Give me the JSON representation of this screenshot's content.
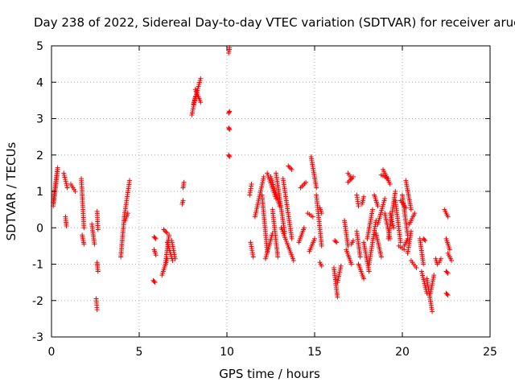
{
  "chart_data": {
    "type": "scatter",
    "title": "Day 238 of 2022, Sidereal Day-to-day VTEC variation (SDTVAR) for receiver aruc",
    "xlabel": "GPS time / hours",
    "ylabel": "SDTVAR / TECUs",
    "xlim": [
      0,
      25
    ],
    "ylim": [
      -3,
      5
    ],
    "xticks": [
      "0",
      "5",
      "10",
      "15",
      "20",
      "25"
    ],
    "yticks": [
      "-3",
      "-2",
      "-1",
      "0",
      "1",
      "2",
      "3",
      "4",
      "5"
    ],
    "grid": true,
    "marker": "plus",
    "series": [
      {
        "name": "SDTVAR",
        "color": "#ff0000",
        "segments": [
          [
            0.1,
            0.7,
            0.35,
            1.65
          ],
          [
            0.35,
            1.6,
            0.1,
            0.6
          ],
          [
            0.7,
            1.5,
            0.9,
            1.1
          ],
          [
            0.8,
            0.3,
            0.85,
            0.05
          ],
          [
            1.1,
            1.2,
            1.35,
            1.0
          ],
          [
            1.7,
            1.35,
            1.85,
            0.0
          ],
          [
            1.75,
            -0.2,
            1.85,
            -0.45
          ],
          [
            2.3,
            0.1,
            2.45,
            -0.45
          ],
          [
            2.6,
            0.45,
            2.65,
            -0.05
          ],
          [
            2.6,
            -0.95,
            2.65,
            -1.2
          ],
          [
            2.55,
            -1.95,
            2.6,
            -2.25
          ],
          [
            3.95,
            -0.8,
            4.15,
            0.3
          ],
          [
            4.15,
            0.3,
            4.45,
            1.3
          ],
          [
            4.2,
            0.2,
            4.35,
            0.4
          ],
          [
            5.85,
            -0.25,
            5.95,
            -0.3
          ],
          [
            5.85,
            -0.6,
            5.95,
            -0.75
          ],
          [
            5.8,
            -1.45,
            5.9,
            -1.5
          ],
          [
            6.3,
            -1.3,
            6.6,
            -0.85
          ],
          [
            6.5,
            -0.95,
            6.7,
            -0.2
          ],
          [
            6.6,
            -0.4,
            6.9,
            -0.9
          ],
          [
            6.85,
            -0.35,
            7.05,
            -0.85
          ],
          [
            6.4,
            -0.05,
            6.6,
            -0.15
          ],
          [
            7.5,
            1.1,
            7.55,
            1.25
          ],
          [
            7.45,
            0.65,
            7.5,
            0.75
          ],
          [
            8.0,
            3.1,
            8.2,
            3.6
          ],
          [
            8.1,
            3.4,
            8.5,
            4.1
          ],
          [
            8.2,
            3.8,
            8.5,
            3.45
          ],
          [
            10.1,
            4.8,
            10.15,
            4.95
          ],
          [
            10.1,
            3.15,
            10.15,
            3.2
          ],
          [
            10.1,
            2.75,
            10.15,
            2.7
          ],
          [
            10.1,
            2.0,
            10.15,
            1.95
          ],
          [
            11.3,
            0.9,
            11.4,
            1.2
          ],
          [
            11.35,
            -0.4,
            11.5,
            -0.8
          ],
          [
            11.6,
            0.3,
            12.1,
            1.4
          ],
          [
            12.0,
            0.9,
            12.3,
            -0.65
          ],
          [
            12.2,
            -0.85,
            12.6,
            -0.15
          ],
          [
            12.3,
            1.5,
            12.8,
            0.8
          ],
          [
            12.5,
            1.4,
            13.0,
            0.6
          ],
          [
            12.6,
            0.5,
            12.9,
            -0.8
          ],
          [
            12.8,
            1.5,
            13.3,
            -0.15
          ],
          [
            13.2,
            1.35,
            13.7,
            -0.3
          ],
          [
            13.1,
            0.0,
            13.8,
            -0.9
          ],
          [
            13.5,
            1.7,
            13.7,
            1.6
          ],
          [
            14.1,
            -0.4,
            14.4,
            0.0
          ],
          [
            14.2,
            1.1,
            14.5,
            1.25
          ],
          [
            14.6,
            0.4,
            14.9,
            0.3
          ],
          [
            14.7,
            -0.65,
            15.0,
            -0.3
          ],
          [
            14.8,
            1.95,
            15.1,
            1.1
          ],
          [
            15.1,
            0.9,
            15.4,
            -0.5
          ],
          [
            15.3,
            0.55,
            15.4,
            0.4
          ],
          [
            15.3,
            -0.95,
            15.4,
            -1.05
          ],
          [
            16.1,
            -1.1,
            16.3,
            -1.9
          ],
          [
            16.15,
            -0.35,
            16.25,
            -0.4
          ],
          [
            16.3,
            -1.5,
            16.5,
            -1.05
          ],
          [
            16.7,
            0.2,
            16.9,
            -0.5
          ],
          [
            16.8,
            -0.6,
            17.1,
            -1.0
          ],
          [
            16.9,
            1.5,
            17.1,
            1.35
          ],
          [
            16.9,
            1.25,
            17.2,
            1.4
          ],
          [
            17.1,
            -0.45,
            17.2,
            -0.35
          ],
          [
            17.4,
            0.9,
            17.5,
            0.6
          ],
          [
            17.4,
            -0.1,
            17.6,
            -0.8
          ],
          [
            17.5,
            -1.0,
            17.8,
            -1.4
          ],
          [
            17.7,
            0.65,
            17.8,
            0.85
          ],
          [
            17.8,
            -0.4,
            18.1,
            -1.2
          ],
          [
            18.0,
            -0.3,
            18.3,
            0.5
          ],
          [
            18.1,
            -1.0,
            18.5,
            0.2
          ],
          [
            18.4,
            0.9,
            18.6,
            0.6
          ],
          [
            18.5,
            -0.15,
            18.8,
            -0.8
          ],
          [
            18.6,
            0.1,
            19.0,
            0.8
          ],
          [
            18.8,
            1.45,
            19.2,
            1.35
          ],
          [
            18.9,
            1.6,
            19.3,
            1.2
          ],
          [
            19.0,
            0.4,
            19.3,
            -0.3
          ],
          [
            19.2,
            -0.3,
            19.6,
            1.0
          ],
          [
            19.3,
            0.4,
            19.5,
            0.0
          ],
          [
            19.6,
            0.75,
            19.9,
            -0.4
          ],
          [
            19.8,
            -0.5,
            20.1,
            -0.6
          ],
          [
            19.9,
            0.75,
            20.2,
            0.55
          ],
          [
            20.0,
            0.9,
            20.3,
            -0.2
          ],
          [
            20.1,
            -0.5,
            20.3,
            -0.3
          ],
          [
            20.2,
            1.3,
            20.5,
            0.5
          ],
          [
            20.3,
            -0.7,
            20.5,
            -0.1
          ],
          [
            20.4,
            0.1,
            20.7,
            0.4
          ],
          [
            20.5,
            -0.9,
            20.8,
            -1.1
          ],
          [
            21.0,
            -0.3,
            21.2,
            -1.0
          ],
          [
            21.1,
            -1.2,
            21.4,
            -1.8
          ],
          [
            21.2,
            -0.3,
            21.3,
            -0.35
          ],
          [
            21.4,
            -1.4,
            21.7,
            -2.3
          ],
          [
            21.6,
            -1.8,
            21.8,
            -1.3
          ],
          [
            21.9,
            -0.85,
            22.0,
            -1.0
          ],
          [
            22.1,
            -0.95,
            22.2,
            -0.85
          ],
          [
            22.4,
            0.5,
            22.6,
            0.3
          ],
          [
            22.5,
            -0.3,
            22.7,
            -0.6
          ],
          [
            22.6,
            -0.7,
            22.8,
            -0.9
          ],
          [
            22.5,
            -1.2,
            22.6,
            -1.25
          ],
          [
            22.5,
            -1.8,
            22.6,
            -1.85
          ]
        ]
      }
    ]
  }
}
